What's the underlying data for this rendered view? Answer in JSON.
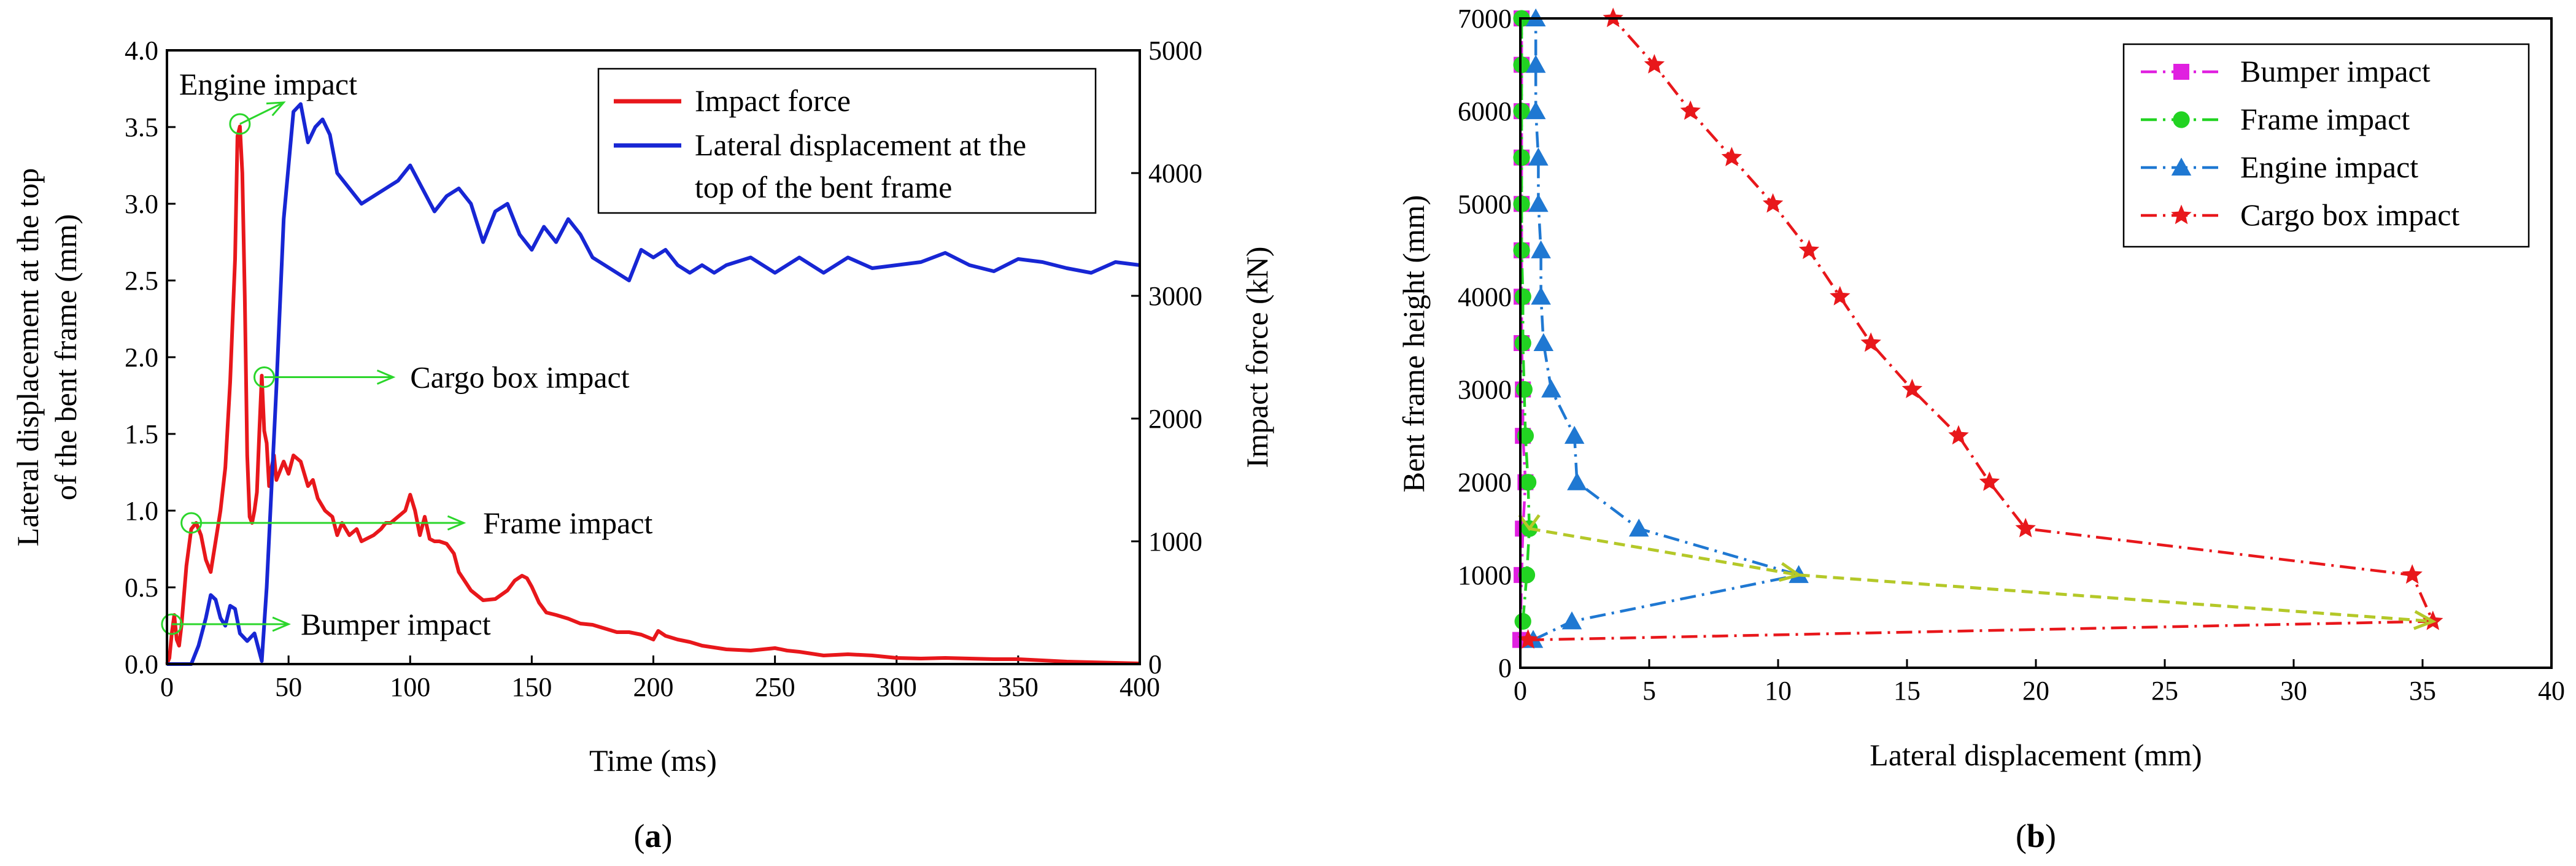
{
  "colors": {
    "impact_force": "#e8171b",
    "displacement_top": "#1726d4",
    "bumper": "#e020e0",
    "frame": "#22d322",
    "engine": "#1f78d2",
    "cargo": "#e8171b",
    "annotation": "#2bd62b",
    "load_path": "#b4c828"
  },
  "panel_a": {
    "label": "(a)",
    "label_letter": "a"
  },
  "panel_b": {
    "label": "(b)",
    "label_letter": "b"
  },
  "chart_data": [
    {
      "id": "a",
      "type": "line",
      "xlabel": "Time (ms)",
      "ylabel_left": "Lateral displacement at the top of the bent frame (mm)",
      "ylabel_left_lines": [
        "Lateral displacement at the top",
        "of the bent frame (mm)"
      ],
      "ylabel_right": "Impact force (kN)",
      "xlim": [
        0,
        400
      ],
      "ylim_left": [
        0,
        4.0
      ],
      "ylim_right": [
        0,
        5000
      ],
      "xticks": [
        "0",
        "50",
        "100",
        "150",
        "200",
        "250",
        "300",
        "350",
        "400"
      ],
      "yticks_left": [
        "0.0",
        "0.5",
        "1.0",
        "1.5",
        "2.0",
        "2.5",
        "3.0",
        "3.5",
        "4.0"
      ],
      "yticks_right": [
        "0",
        "1000",
        "2000",
        "3000",
        "4000",
        "5000"
      ],
      "legend": [
        "Impact force",
        "Lateral displacement at the top of the bent frame"
      ],
      "legend_lines": [
        [
          "Impact force"
        ],
        [
          "Lateral displacement at the",
          "top of the bent frame"
        ]
      ],
      "legend_position": "top-right",
      "series": [
        {
          "name": "Impact force",
          "axis": "right",
          "x": [
            0,
            1,
            2,
            3,
            4,
            5,
            6,
            8,
            10,
            12,
            14,
            16,
            18,
            20,
            22,
            24,
            26,
            28,
            29,
            30,
            31,
            32,
            33,
            34,
            35,
            36,
            37,
            38,
            39,
            40,
            41,
            42,
            43,
            44,
            45,
            46,
            48,
            50,
            52,
            55,
            58,
            60,
            62,
            65,
            68,
            70,
            72,
            75,
            78,
            80,
            85,
            88,
            90,
            92,
            95,
            98,
            100,
            102,
            104,
            106,
            108,
            110,
            112,
            115,
            118,
            120,
            125,
            130,
            135,
            140,
            143,
            146,
            148,
            150,
            153,
            156,
            160,
            165,
            170,
            175,
            180,
            185,
            190,
            195,
            200,
            202,
            205,
            210,
            215,
            220,
            230,
            240,
            245,
            250,
            255,
            260,
            270,
            280,
            290,
            300,
            310,
            320,
            330,
            340,
            350,
            360,
            370,
            380,
            390,
            400
          ],
          "values": [
            0,
            50,
            250,
            400,
            200,
            150,
            320,
            800,
            1100,
            1150,
            1050,
            850,
            750,
            1000,
            1250,
            1600,
            2300,
            3300,
            4300,
            4380,
            4000,
            3000,
            1700,
            1200,
            1150,
            1250,
            1400,
            1900,
            2350,
            1900,
            1800,
            1450,
            1600,
            1700,
            1500,
            1550,
            1650,
            1550,
            1700,
            1650,
            1450,
            1500,
            1350,
            1250,
            1200,
            1050,
            1150,
            1050,
            1100,
            1000,
            1050,
            1100,
            1150,
            1150,
            1200,
            1250,
            1380,
            1250,
            1050,
            1200,
            1020,
            1000,
            1000,
            980,
            900,
            750,
            600,
            520,
            530,
            600,
            680,
            720,
            700,
            630,
            500,
            420,
            400,
            370,
            330,
            320,
            290,
            260,
            260,
            240,
            200,
            270,
            230,
            200,
            180,
            150,
            120,
            110,
            120,
            130,
            110,
            100,
            70,
            80,
            70,
            50,
            45,
            50,
            45,
            40,
            40,
            30,
            20,
            15,
            10,
            5
          ]
        },
        {
          "name": "Lateral displacement at the top of the bent frame",
          "axis": "left",
          "x": [
            0,
            10,
            13,
            16,
            18,
            20,
            22,
            24,
            26,
            28,
            30,
            33,
            36,
            39,
            41,
            45,
            48,
            52,
            55,
            58,
            61,
            64,
            67,
            70,
            75,
            80,
            85,
            90,
            95,
            100,
            105,
            110,
            115,
            120,
            125,
            130,
            135,
            140,
            145,
            150,
            155,
            160,
            165,
            170,
            175,
            180,
            185,
            190,
            195,
            200,
            205,
            210,
            215,
            220,
            225,
            230,
            240,
            250,
            260,
            270,
            280,
            290,
            300,
            310,
            320,
            330,
            340,
            350,
            360,
            370,
            380,
            390,
            400
          ],
          "values": [
            0,
            0,
            0.12,
            0.3,
            0.45,
            0.42,
            0.3,
            0.25,
            0.38,
            0.36,
            0.2,
            0.15,
            0.2,
            0.02,
            0.5,
            1.8,
            2.9,
            3.6,
            3.65,
            3.4,
            3.5,
            3.55,
            3.45,
            3.2,
            3.1,
            3.0,
            3.05,
            3.1,
            3.15,
            3.25,
            3.1,
            2.95,
            3.05,
            3.1,
            3.0,
            2.75,
            2.95,
            3.0,
            2.8,
            2.7,
            2.85,
            2.75,
            2.9,
            2.8,
            2.65,
            2.6,
            2.55,
            2.5,
            2.7,
            2.65,
            2.7,
            2.6,
            2.55,
            2.6,
            2.55,
            2.6,
            2.65,
            2.55,
            2.65,
            2.55,
            2.65,
            2.58,
            2.6,
            2.62,
            2.68,
            2.6,
            2.56,
            2.64,
            2.62,
            2.58,
            2.55,
            2.62,
            2.6
          ]
        }
      ],
      "annotations": [
        {
          "text": "Engine impact",
          "x": 30,
          "y": 3.52,
          "label_x": 5,
          "label_y": 3.78,
          "arrow_to_x": 48,
          "arrow_to_y": 3.66
        },
        {
          "text": "Cargo box impact",
          "x": 40,
          "y": 1.87,
          "label_x": 100,
          "label_y": 1.87,
          "arrow_to_x": 93,
          "arrow_to_y": 1.87
        },
        {
          "text": "Frame impact",
          "x": 10,
          "y": 0.92,
          "label_x": 130,
          "label_y": 0.92,
          "arrow_to_x": 122,
          "arrow_to_y": 0.92
        },
        {
          "text": "Bumper impact",
          "x": 2,
          "y": 0.26,
          "label_x": 55,
          "label_y": 0.26,
          "arrow_to_x": 50,
          "arrow_to_y": 0.26
        }
      ]
    },
    {
      "id": "b",
      "type": "line",
      "xlabel": "Lateral displacement (mm)",
      "ylabel": "Bent frame height (mm)",
      "xlim": [
        0,
        40
      ],
      "ylim": [
        0,
        7000
      ],
      "xticks": [
        "0",
        "5",
        "10",
        "15",
        "20",
        "25",
        "30",
        "35",
        "40"
      ],
      "yticks": [
        "0",
        "1000",
        "2000",
        "3000",
        "4000",
        "5000",
        "6000",
        "7000"
      ],
      "legend": [
        "Bumper impact",
        "Frame impact",
        "Engine impact",
        "Cargo box impact"
      ],
      "legend_position": "top-right",
      "series": [
        {
          "name": "Bumper impact",
          "marker": "square",
          "points": [
            [
              0.0,
              300
            ],
            [
              0.05,
              1000
            ],
            [
              0.1,
              1500
            ],
            [
              0.2,
              2000
            ],
            [
              0.1,
              2500
            ],
            [
              0.1,
              3000
            ],
            [
              0.05,
              3500
            ],
            [
              0.05,
              4000
            ],
            [
              0.05,
              4500
            ],
            [
              0.05,
              5000
            ],
            [
              0.05,
              5500
            ],
            [
              0.05,
              6000
            ],
            [
              0.05,
              6500
            ],
            [
              0.05,
              7000
            ]
          ]
        },
        {
          "name": "Frame impact",
          "marker": "circle",
          "points": [
            [
              0.1,
              500
            ],
            [
              0.25,
              1000
            ],
            [
              0.35,
              1500
            ],
            [
              0.3,
              2000
            ],
            [
              0.2,
              2500
            ],
            [
              0.15,
              3000
            ],
            [
              0.1,
              3500
            ],
            [
              0.1,
              4000
            ],
            [
              0.05,
              4500
            ],
            [
              0.05,
              5000
            ],
            [
              0.05,
              5500
            ],
            [
              0.05,
              6000
            ],
            [
              0.05,
              6500
            ],
            [
              0.05,
              7000
            ]
          ]
        },
        {
          "name": "Engine impact",
          "marker": "triangle",
          "points": [
            [
              0.5,
              300
            ],
            [
              2.0,
              500
            ],
            [
              10.8,
              1000
            ],
            [
              4.6,
              1500
            ],
            [
              2.2,
              2000
            ],
            [
              2.1,
              2500
            ],
            [
              1.2,
              3000
            ],
            [
              0.9,
              3500
            ],
            [
              0.8,
              4000
            ],
            [
              0.8,
              4500
            ],
            [
              0.7,
              5000
            ],
            [
              0.7,
              5500
            ],
            [
              0.6,
              6000
            ],
            [
              0.6,
              6500
            ],
            [
              0.6,
              7000
            ]
          ]
        },
        {
          "name": "Cargo box impact",
          "marker": "star",
          "points": [
            [
              0.3,
              300
            ],
            [
              35.4,
              500
            ],
            [
              34.6,
              1000
            ],
            [
              19.6,
              1500
            ],
            [
              18.2,
              2000
            ],
            [
              17.0,
              2500
            ],
            [
              15.2,
              3000
            ],
            [
              13.6,
              3500
            ],
            [
              12.4,
              4000
            ],
            [
              11.2,
              4500
            ],
            [
              9.8,
              5000
            ],
            [
              8.2,
              5500
            ],
            [
              6.6,
              6000
            ],
            [
              5.2,
              6500
            ],
            [
              3.6,
              7000
            ]
          ]
        }
      ],
      "load_path": [
        [
          0.35,
          1500
        ],
        [
          10.8,
          1000
        ],
        [
          35.4,
          500
        ]
      ]
    }
  ]
}
